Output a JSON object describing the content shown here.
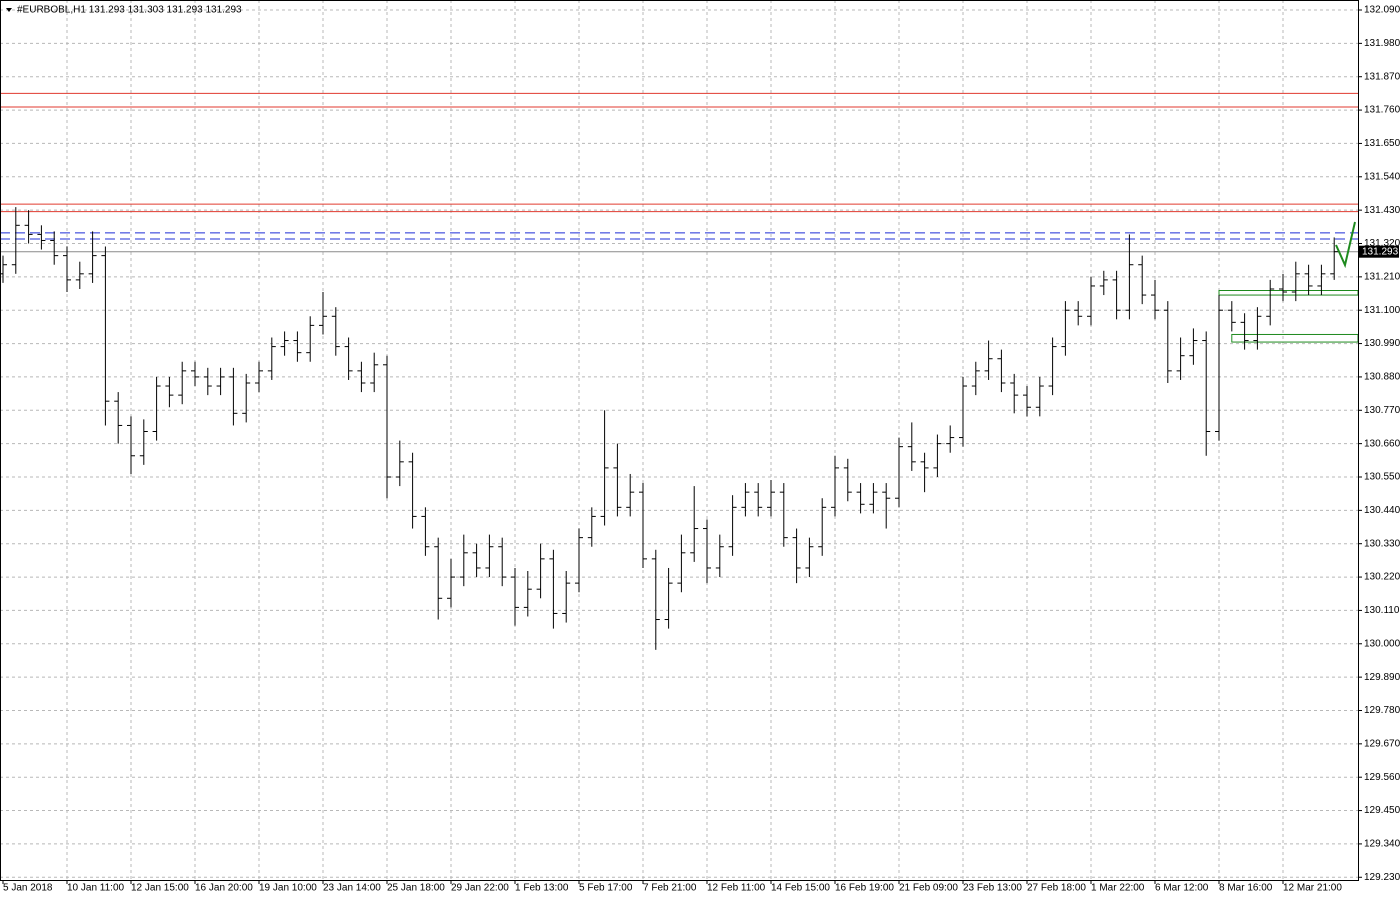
{
  "chart_data": {
    "type": "ohlc",
    "title": "#EURBOBL,H1  131.293 131.303 131.293 131.293",
    "categories": [
      "5 Jan 2018",
      null,
      null,
      null,
      null,
      "10 Jan 11:00",
      null,
      null,
      null,
      null,
      "12 Jan 15:00",
      null,
      null,
      null,
      null,
      "16 Jan 20:00",
      null,
      null,
      null,
      null,
      "19 Jan 10:00",
      null,
      null,
      null,
      null,
      "23 Jan 14:00",
      null,
      null,
      null,
      null,
      "25 Jan 18:00",
      null,
      null,
      null,
      null,
      "29 Jan 22:00",
      null,
      null,
      null,
      null,
      "1 Feb 13:00",
      null,
      null,
      null,
      null,
      "5 Feb 17:00",
      null,
      null,
      null,
      null,
      "7 Feb 21:00",
      null,
      null,
      null,
      null,
      "12 Feb 11:00",
      null,
      null,
      null,
      null,
      "14 Feb 15:00",
      null,
      null,
      null,
      null,
      "16 Feb 19:00",
      null,
      null,
      null,
      null,
      "21 Feb 09:00",
      null,
      null,
      null,
      null,
      "23 Feb 13:00",
      null,
      null,
      null,
      null,
      "27 Feb 18:00",
      null,
      null,
      null,
      null,
      "1 Mar 22:00",
      null,
      null,
      null,
      null,
      "6 Mar 12:00",
      null,
      null,
      null,
      null,
      "8 Mar 16:00",
      null,
      null,
      null,
      null,
      "12 Mar 21:00",
      null,
      null,
      null,
      null
    ],
    "open": [
      131.22,
      131.25,
      131.38,
      131.35,
      131.33,
      131.28,
      131.2,
      131.22,
      131.28,
      130.8,
      130.72,
      130.62,
      130.7,
      130.85,
      130.82,
      130.9,
      130.88,
      130.85,
      130.88,
      130.76,
      130.86,
      130.9,
      130.98,
      131.0,
      130.96,
      131.05,
      131.08,
      130.98,
      130.9,
      130.86,
      130.92,
      130.55,
      130.6,
      130.42,
      130.32,
      130.15,
      130.22,
      130.3,
      130.25,
      130.32,
      130.22,
      130.12,
      130.18,
      130.28,
      130.1,
      130.2,
      130.35,
      130.42,
      130.58,
      130.45,
      130.5,
      130.28,
      130.08,
      130.2,
      130.3,
      130.38,
      130.25,
      130.32,
      130.45,
      130.5,
      130.45,
      130.5,
      130.35,
      130.25,
      130.32,
      130.45,
      130.58,
      130.5,
      130.46,
      130.5,
      130.48,
      130.65,
      130.6,
      130.58,
      130.66,
      130.68,
      130.85,
      130.9,
      130.94,
      130.86,
      130.82,
      130.78,
      130.85,
      130.98,
      131.1,
      131.08,
      131.18,
      131.2,
      131.1,
      131.25,
      131.15,
      131.1,
      130.9,
      130.95,
      131.0,
      130.7,
      131.1,
      131.06,
      131.0,
      131.08,
      131.17,
      131.16,
      131.22,
      131.18,
      131.22
    ],
    "high": [
      131.28,
      131.44,
      131.43,
      131.38,
      131.36,
      131.31,
      131.26,
      131.36,
      131.31,
      130.83,
      130.75,
      130.74,
      130.88,
      130.88,
      130.93,
      130.93,
      130.91,
      130.91,
      130.91,
      130.89,
      130.93,
      131.01,
      131.03,
      131.03,
      131.08,
      131.16,
      131.11,
      131.01,
      130.93,
      130.96,
      130.95,
      130.67,
      130.63,
      130.45,
      130.35,
      130.28,
      130.36,
      130.33,
      130.36,
      130.35,
      130.25,
      130.24,
      130.33,
      130.31,
      130.24,
      130.38,
      130.45,
      130.77,
      130.66,
      130.56,
      130.53,
      130.31,
      130.25,
      130.36,
      130.52,
      130.41,
      130.36,
      130.49,
      130.53,
      130.53,
      130.54,
      130.53,
      130.38,
      130.35,
      130.48,
      130.62,
      130.61,
      130.53,
      130.53,
      130.53,
      130.68,
      130.73,
      130.63,
      130.69,
      130.72,
      130.88,
      130.93,
      131.0,
      130.97,
      130.89,
      130.85,
      130.88,
      131.01,
      131.13,
      131.13,
      131.21,
      131.23,
      131.23,
      131.35,
      131.28,
      131.2,
      131.13,
      131.01,
      131.04,
      131.03,
      131.15,
      131.13,
      131.09,
      131.11,
      131.2,
      131.22,
      131.26,
      131.25,
      131.25,
      131.34
    ],
    "low": [
      131.19,
      131.22,
      131.32,
      131.3,
      131.25,
      131.16,
      131.17,
      131.19,
      130.72,
      130.66,
      130.56,
      130.59,
      130.67,
      130.78,
      130.79,
      130.85,
      130.82,
      130.82,
      130.72,
      130.73,
      130.83,
      130.87,
      130.95,
      130.93,
      130.93,
      131.02,
      130.95,
      130.87,
      130.83,
      130.83,
      130.48,
      130.52,
      130.38,
      130.29,
      130.08,
      130.12,
      130.19,
      130.22,
      130.22,
      130.19,
      130.06,
      130.09,
      130.15,
      130.05,
      130.07,
      130.17,
      130.32,
      130.39,
      130.42,
      130.42,
      130.25,
      129.98,
      130.05,
      130.17,
      130.27,
      130.2,
      130.22,
      130.29,
      130.42,
      130.42,
      130.42,
      130.32,
      130.2,
      130.22,
      130.29,
      130.42,
      130.47,
      130.43,
      130.43,
      130.38,
      130.45,
      130.57,
      130.5,
      130.55,
      130.63,
      130.65,
      130.82,
      130.87,
      130.83,
      130.76,
      130.75,
      130.75,
      130.82,
      130.95,
      131.05,
      131.05,
      131.15,
      131.07,
      131.07,
      131.12,
      131.07,
      130.86,
      130.87,
      130.92,
      130.62,
      130.67,
      131.03,
      130.97,
      130.97,
      131.05,
      131.13,
      131.13,
      131.15,
      131.15,
      131.2
    ],
    "close": [
      131.25,
      131.38,
      131.35,
      131.33,
      131.28,
      131.2,
      131.22,
      131.28,
      130.8,
      130.72,
      130.62,
      130.7,
      130.85,
      130.82,
      130.9,
      130.88,
      130.85,
      130.88,
      130.76,
      130.86,
      130.9,
      130.98,
      131.0,
      130.96,
      131.05,
      131.08,
      130.98,
      130.9,
      130.86,
      130.92,
      130.55,
      130.6,
      130.42,
      130.32,
      130.15,
      130.22,
      130.3,
      130.25,
      130.32,
      130.22,
      130.12,
      130.18,
      130.28,
      130.1,
      130.2,
      130.35,
      130.42,
      130.58,
      130.45,
      130.5,
      130.28,
      130.08,
      130.2,
      130.3,
      130.38,
      130.25,
      130.32,
      130.45,
      130.5,
      130.45,
      130.5,
      130.35,
      130.25,
      130.32,
      130.45,
      130.58,
      130.5,
      130.46,
      130.5,
      130.48,
      130.65,
      130.6,
      130.58,
      130.66,
      130.68,
      130.85,
      130.9,
      130.94,
      130.86,
      130.82,
      130.78,
      130.85,
      130.98,
      131.1,
      131.08,
      131.18,
      131.2,
      131.1,
      131.25,
      131.15,
      131.1,
      130.9,
      130.95,
      131.0,
      130.7,
      131.1,
      131.06,
      131.0,
      131.08,
      131.17,
      131.16,
      131.22,
      131.18,
      131.22,
      131.293
    ],
    "color": "#000000",
    "last_price": 131.293,
    "ylim": [
      129.221,
      132.123
    ],
    "yticks": [
      {
        "value": 132.09,
        "label": "132.090"
      },
      {
        "value": 131.98,
        "label": "131.980"
      },
      {
        "value": 131.87,
        "label": "131.870"
      },
      {
        "value": 131.76,
        "label": "131.760"
      },
      {
        "value": 131.65,
        "label": "131.650"
      },
      {
        "value": 131.54,
        "label": "131.540"
      },
      {
        "value": 131.43,
        "label": "131.430"
      },
      {
        "value": 131.32,
        "label": "131.320"
      },
      {
        "value": 131.21,
        "label": "131.210"
      },
      {
        "value": 131.1,
        "label": "131.100"
      },
      {
        "value": 130.99,
        "label": "130.990"
      },
      {
        "value": 130.88,
        "label": "130.880"
      },
      {
        "value": 130.77,
        "label": "130.770"
      },
      {
        "value": 130.66,
        "label": "130.660"
      },
      {
        "value": 130.55,
        "label": "130.550"
      },
      {
        "value": 130.44,
        "label": "130.440"
      },
      {
        "value": 130.33,
        "label": "130.330"
      },
      {
        "value": 130.22,
        "label": "130.220"
      },
      {
        "value": 130.11,
        "label": "130.110"
      },
      {
        "value": 130,
        "label": "130.000"
      },
      {
        "value": 129.89,
        "label": "129.890"
      },
      {
        "value": 129.78,
        "label": "129.780"
      },
      {
        "value": 129.67,
        "label": "129.670"
      },
      {
        "value": 129.56,
        "label": "129.560"
      },
      {
        "value": 129.45,
        "label": "129.450"
      },
      {
        "value": 129.34,
        "label": "129.340"
      },
      {
        "value": 129.23,
        "label": "129.230"
      }
    ],
    "grid": true,
    "levels": [
      {
        "value": 131.815,
        "color": "#e03a2f",
        "dashed": false
      },
      {
        "value": 131.77,
        "color": "#e03a2f",
        "dashed": false
      },
      {
        "value": 131.45,
        "color": "#e03a2f",
        "dashed": false
      },
      {
        "value": 131.425,
        "color": "#e03a2f",
        "dashed": false
      },
      {
        "value": 131.355,
        "color": "#1f2fd6",
        "dashed": true
      },
      {
        "value": 131.335,
        "color": "#1f2fd6",
        "dashed": true
      }
    ],
    "zones": [
      {
        "from_bar": 95,
        "low": 131.15,
        "high": 131.165,
        "color": "#1e8a1e"
      },
      {
        "from_bar": 96,
        "low": 130.995,
        "high": 131.02,
        "color": "#1e8a1e"
      }
    ]
  }
}
